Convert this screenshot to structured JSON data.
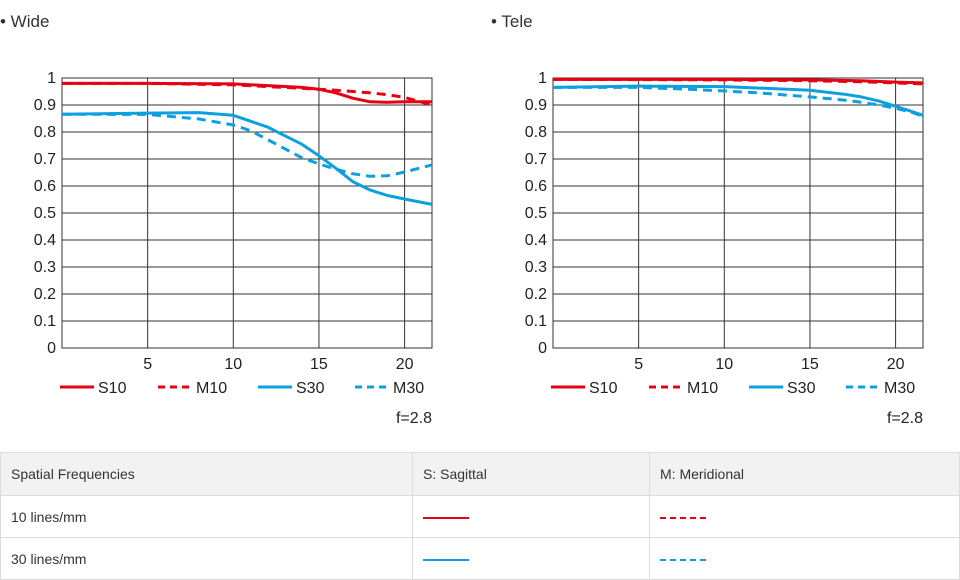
{
  "panels": [
    {
      "title": "• Wide",
      "f_note": "f=2.8"
    },
    {
      "title": "• Tele",
      "f_note": "f=2.8"
    }
  ],
  "colors": {
    "red": "#e60012",
    "blue": "#0ca0e0",
    "grid": "#333333"
  },
  "legend": [
    {
      "label": "S10",
      "color": "#e60012",
      "dashed": false
    },
    {
      "label": "M10",
      "color": "#e60012",
      "dashed": true
    },
    {
      "label": "S30",
      "color": "#0ca0e0",
      "dashed": false
    },
    {
      "label": "M30",
      "color": "#0ca0e0",
      "dashed": true
    }
  ],
  "table": {
    "headers": [
      "Spatial Frequencies",
      "S: Sagittal",
      "M: Meridional"
    ],
    "rows": [
      {
        "label": "10 lines/mm",
        "s_color": "#e60012",
        "m_color": "#e60012"
      },
      {
        "label": "30 lines/mm",
        "s_color": "#0ca0e0",
        "m_color": "#0ca0e0"
      }
    ]
  },
  "chart_data": [
    {
      "type": "line",
      "title": "• Wide",
      "xlim": [
        0,
        21.6
      ],
      "ylim": [
        0,
        1
      ],
      "xticks": [
        5,
        10,
        15,
        20
      ],
      "yticks": [
        0,
        0.1,
        0.2,
        0.3,
        0.4,
        0.5,
        0.6,
        0.7,
        0.8,
        0.9,
        1
      ],
      "grid": true,
      "series": [
        {
          "name": "S10",
          "color": "#e60012",
          "dashed": false,
          "x": [
            0,
            5,
            10,
            12,
            14,
            15,
            16,
            17,
            18,
            19,
            20,
            21.6
          ],
          "y": [
            0.98,
            0.98,
            0.978,
            0.972,
            0.965,
            0.958,
            0.945,
            0.925,
            0.912,
            0.91,
            0.912,
            0.912
          ]
        },
        {
          "name": "M10",
          "color": "#e60012",
          "dashed": true,
          "x": [
            0,
            5,
            10,
            12,
            14,
            15,
            16,
            17,
            18,
            19,
            20,
            21.6
          ],
          "y": [
            0.98,
            0.98,
            0.975,
            0.968,
            0.962,
            0.958,
            0.955,
            0.95,
            0.945,
            0.938,
            0.928,
            0.9
          ]
        },
        {
          "name": "S30",
          "color": "#0ca0e0",
          "dashed": false,
          "x": [
            0,
            5,
            8,
            10,
            12,
            14,
            15,
            16,
            17,
            18,
            19,
            20,
            21.6
          ],
          "y": [
            0.866,
            0.87,
            0.872,
            0.862,
            0.818,
            0.755,
            0.712,
            0.665,
            0.615,
            0.585,
            0.565,
            0.552,
            0.532
          ]
        },
        {
          "name": "M30",
          "color": "#0ca0e0",
          "dashed": true,
          "x": [
            0,
            5,
            8,
            10,
            11,
            12,
            13,
            14,
            15,
            16,
            17,
            18,
            19,
            20,
            21.6
          ],
          "y": [
            0.866,
            0.865,
            0.848,
            0.826,
            0.805,
            0.772,
            0.738,
            0.705,
            0.682,
            0.662,
            0.645,
            0.636,
            0.638,
            0.652,
            0.678
          ]
        }
      ]
    },
    {
      "type": "line",
      "title": "• Tele",
      "xlim": [
        0,
        21.6
      ],
      "ylim": [
        0,
        1
      ],
      "xticks": [
        5,
        10,
        15,
        20
      ],
      "yticks": [
        0,
        0.1,
        0.2,
        0.3,
        0.4,
        0.5,
        0.6,
        0.7,
        0.8,
        0.9,
        1
      ],
      "grid": true,
      "series": [
        {
          "name": "S10",
          "color": "#e60012",
          "dashed": false,
          "x": [
            0,
            5,
            10,
            15,
            18,
            20,
            21.6
          ],
          "y": [
            0.995,
            0.995,
            0.995,
            0.993,
            0.99,
            0.985,
            0.982
          ]
        },
        {
          "name": "M10",
          "color": "#e60012",
          "dashed": true,
          "x": [
            0,
            5,
            10,
            15,
            18,
            20,
            21.6
          ],
          "y": [
            0.995,
            0.994,
            0.993,
            0.99,
            0.986,
            0.982,
            0.978
          ]
        },
        {
          "name": "S30",
          "color": "#0ca0e0",
          "dashed": false,
          "x": [
            0,
            5,
            10,
            15,
            17,
            18,
            19,
            20,
            21,
            21.6
          ],
          "y": [
            0.965,
            0.97,
            0.968,
            0.955,
            0.94,
            0.93,
            0.915,
            0.895,
            0.875,
            0.862
          ]
        },
        {
          "name": "M30",
          "color": "#0ca0e0",
          "dashed": true,
          "x": [
            0,
            5,
            8,
            10,
            12,
            15,
            17,
            18,
            19,
            20,
            21,
            21.6
          ],
          "y": [
            0.965,
            0.965,
            0.958,
            0.952,
            0.945,
            0.93,
            0.918,
            0.91,
            0.9,
            0.888,
            0.872,
            0.858
          ]
        }
      ]
    }
  ]
}
